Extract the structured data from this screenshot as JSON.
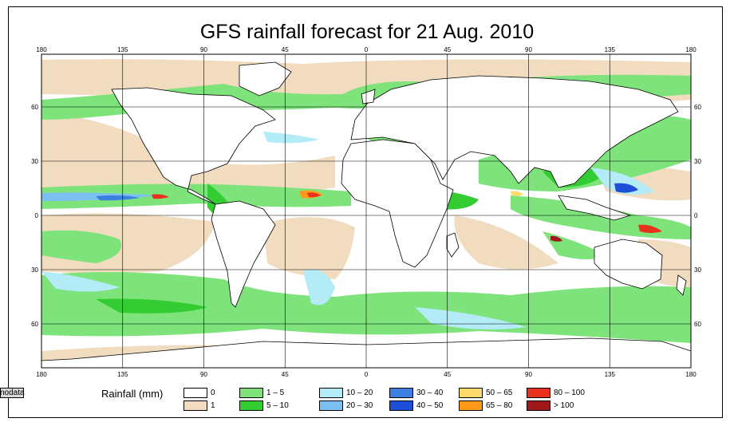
{
  "title": "GFS rainfall forecast for 21 Aug. 2010",
  "axes": {
    "lon_ticks": [
      "180",
      "135",
      "90",
      "45",
      "0",
      "45",
      "90",
      "135",
      "180"
    ],
    "lat_ticks": [
      "60",
      "30",
      "0",
      "30",
      "60"
    ]
  },
  "legend": {
    "title": "Rainfall (mm)",
    "items": [
      {
        "label": "0",
        "color": "#ffffff"
      },
      {
        "label": "1",
        "color": "#f1dcc0"
      },
      {
        "label": "1 – 5",
        "color": "#7ee37a"
      },
      {
        "label": "5 – 10",
        "color": "#33cc33"
      },
      {
        "label": "10 – 20",
        "color": "#b3ebf7"
      },
      {
        "label": "20 – 30",
        "color": "#7cc0f2"
      },
      {
        "label": "30 – 40",
        "color": "#3b7fe0"
      },
      {
        "label": "40 – 50",
        "color": "#1d4ed8"
      },
      {
        "label": "50 – 65",
        "color": "#ffdb6e"
      },
      {
        "label": "65 – 80",
        "color": "#ff9a1a"
      },
      {
        "label": "80 – 100",
        "color": "#e8321c"
      },
      {
        "label": "> 100",
        "color": "#a0181c"
      },
      {
        "label": "nodata",
        "color": "#d9d9d9"
      }
    ]
  }
}
